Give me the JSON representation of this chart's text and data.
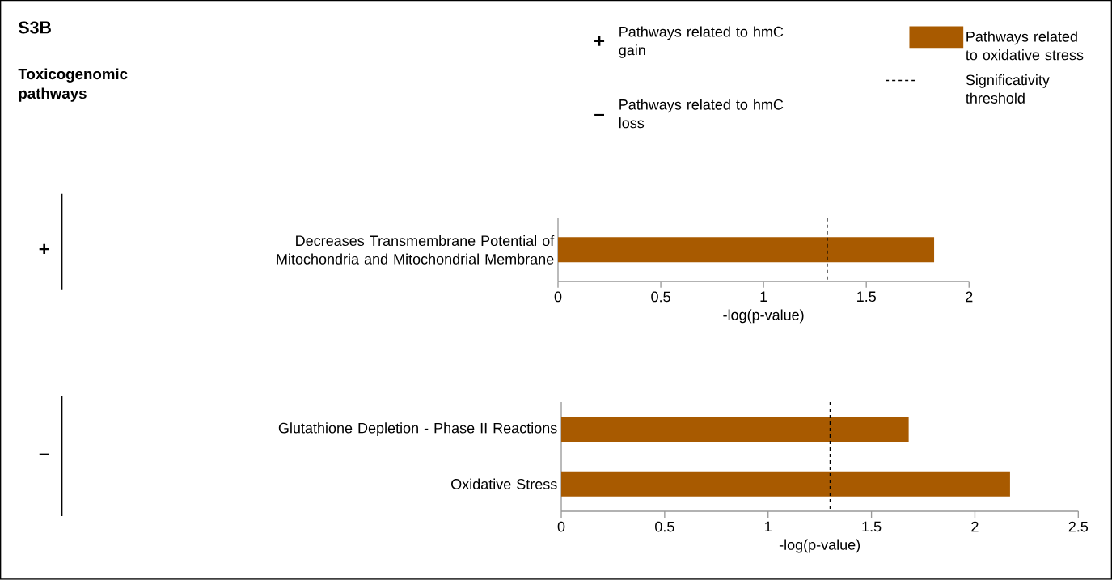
{
  "chart_data": [
    {
      "type": "other",
      "title": "S3B",
      "subtitle": "Toxicogenomic pathways",
      "annotations": [
        "+",
        "Pathways related to hmC gain",
        "–",
        "Pathways related to hmC loss"
      ]
    },
    {
      "type": "bar",
      "orientation": "horizontal",
      "ylabel": "+",
      "xlabel": "-log(p-value)",
      "categories": [
        "Decreases Transmembrane Potential of Mitochondria and Mitochondrial Membrane"
      ],
      "series": [
        {
          "name": "Pathways related to oxidative stress",
          "color": "#a85a00",
          "values": [
            1.83
          ]
        }
      ],
      "xlim": [
        0,
        2
      ],
      "xticks": [
        0,
        0.5,
        1,
        1.5,
        2
      ],
      "legend": "top",
      "ref_lines": [
        {
          "axis": "x",
          "value": 1.31,
          "label": "Significativity threshold",
          "color": "#000000",
          "line_style": "dashed"
        }
      ]
    },
    {
      "type": "bar",
      "orientation": "horizontal",
      "ylabel": "–",
      "xlabel": "-log(p-value)",
      "categories": [
        "Glutathione Depletion - Phase II Reactions",
        "Oxidative Stress"
      ],
      "series": [
        {
          "color": "#a85a00",
          "values": [
            1.68,
            2.17
          ]
        }
      ],
      "xlim": [
        0,
        2.5
      ],
      "xticks": [
        0,
        0.5,
        1,
        1.5,
        2,
        2.5
      ],
      "ref_lines": [
        {
          "axis": "x",
          "value": 1.3,
          "color": "#000000",
          "line_style": "dashed"
        }
      ]
    }
  ]
}
